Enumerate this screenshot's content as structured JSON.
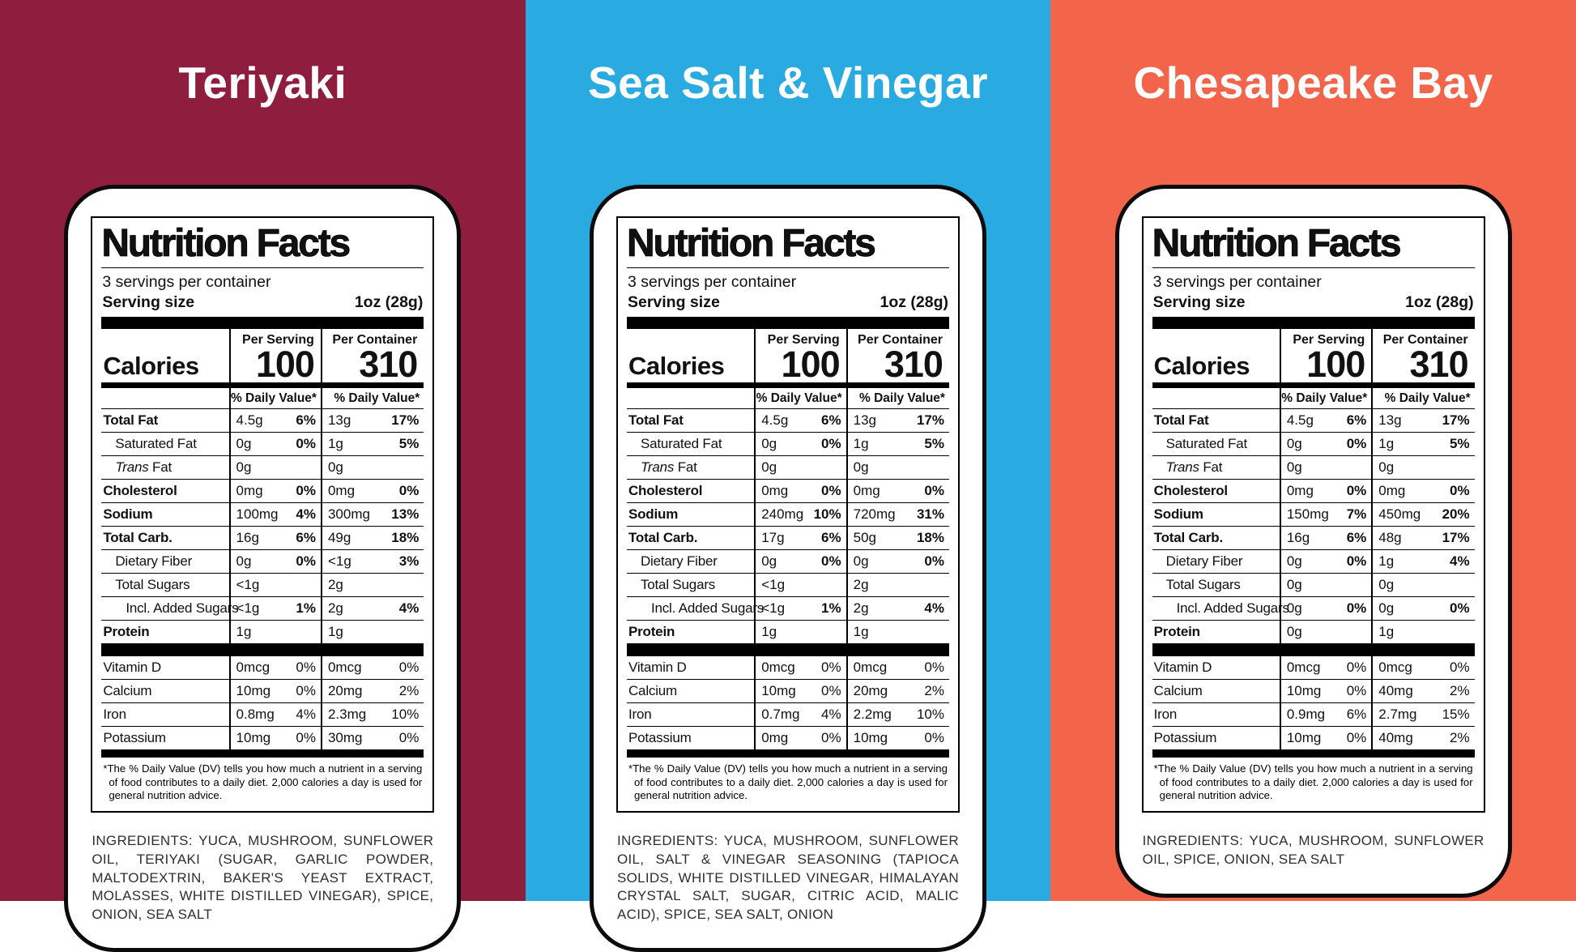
{
  "labels": [
    {
      "title": "Teriyaki",
      "colors": {
        "background": "#8e1d3e"
      },
      "facts": {
        "heading": "Nutrition Facts",
        "servings_per_container": "3 servings per container",
        "serving_size_label": "Serving size",
        "serving_size_value": "1oz (28g)",
        "calories_label": "Calories",
        "per_serving_label": "Per Serving",
        "per_serving_calories": "100",
        "per_container_label": "Per Container",
        "per_container_calories": "310",
        "daily_value_header": "% Daily Value*",
        "rows": [
          {
            "label": "Total Fat",
            "bold": true,
            "indent": 0,
            "ps_amount": "4.5g",
            "ps_dv": "6%",
            "pc_amount": "13g",
            "pc_dv": "17%"
          },
          {
            "label": "Saturated Fat",
            "bold": false,
            "indent": 1,
            "ps_amount": "0g",
            "ps_dv": "0%",
            "pc_amount": "1g",
            "pc_dv": "5%"
          },
          {
            "label_italic": "Trans",
            "label": " Fat",
            "bold": false,
            "indent": 1,
            "ps_amount": "0g",
            "ps_dv": "",
            "pc_amount": "0g",
            "pc_dv": ""
          },
          {
            "label": "Cholesterol",
            "bold": true,
            "indent": 0,
            "ps_amount": "0mg",
            "ps_dv": "0%",
            "pc_amount": "0mg",
            "pc_dv": "0%"
          },
          {
            "label": "Sodium",
            "bold": true,
            "indent": 0,
            "ps_amount": "100mg",
            "ps_dv": "4%",
            "pc_amount": "300mg",
            "pc_dv": "13%"
          },
          {
            "label": "Total Carb.",
            "bold": true,
            "indent": 0,
            "ps_amount": "16g",
            "ps_dv": "6%",
            "pc_amount": "49g",
            "pc_dv": "18%"
          },
          {
            "label": "Dietary Fiber",
            "bold": false,
            "indent": 1,
            "ps_amount": "0g",
            "ps_dv": "0%",
            "pc_amount": "<1g",
            "pc_dv": "3%"
          },
          {
            "label": "Total Sugars",
            "bold": false,
            "indent": 1,
            "ps_amount": "<1g",
            "ps_dv": "",
            "pc_amount": "2g",
            "pc_dv": ""
          },
          {
            "label": "Incl. Added Sugars",
            "bold": false,
            "indent": 2,
            "ps_amount": "<1g",
            "ps_dv": "1%",
            "pc_amount": "2g",
            "pc_dv": "4%"
          },
          {
            "label": "Protein",
            "bold": true,
            "indent": 0,
            "ps_amount": "1g",
            "ps_dv": "",
            "pc_amount": "1g",
            "pc_dv": ""
          }
        ],
        "vitamin_rows": [
          {
            "label": "Vitamin D",
            "ps_amount": "0mcg",
            "ps_dv": "0%",
            "pc_amount": "0mcg",
            "pc_dv": "0%"
          },
          {
            "label": "Calcium",
            "ps_amount": "10mg",
            "ps_dv": "0%",
            "pc_amount": "20mg",
            "pc_dv": "2%"
          },
          {
            "label": "Iron",
            "ps_amount": "0.8mg",
            "ps_dv": "4%",
            "pc_amount": "2.3mg",
            "pc_dv": "10%"
          },
          {
            "label": "Potassium",
            "ps_amount": "10mg",
            "ps_dv": "0%",
            "pc_amount": "30mg",
            "pc_dv": "0%"
          }
        ],
        "footnote": "*The % Daily Value (DV) tells you how much a nutrient in a serving of food contributes to a daily diet. 2,000 calories a day is used for general nutrition advice."
      },
      "ingredients": "INGREDIENTS: YUCA, MUSHROOM, SUNFLOWER OIL, TERIYAKI (SUGAR, GARLIC POWDER, MALTODEXTRIN, BAKER'S YEAST EXTRACT, MOLASSES, WHITE DISTILLED VINEGAR), SPICE, ONION, SEA SALT"
    },
    {
      "title": "Sea Salt & Vinegar",
      "colors": {
        "background": "#29abe2"
      },
      "facts": {
        "heading": "Nutrition Facts",
        "servings_per_container": "3 servings per container",
        "serving_size_label": "Serving size",
        "serving_size_value": "1oz (28g)",
        "calories_label": "Calories",
        "per_serving_label": "Per Serving",
        "per_serving_calories": "100",
        "per_container_label": "Per Container",
        "per_container_calories": "310",
        "daily_value_header": "% Daily Value*",
        "rows": [
          {
            "label": "Total Fat",
            "bold": true,
            "indent": 0,
            "ps_amount": "4.5g",
            "ps_dv": "6%",
            "pc_amount": "13g",
            "pc_dv": "17%"
          },
          {
            "label": "Saturated Fat",
            "bold": false,
            "indent": 1,
            "ps_amount": "0g",
            "ps_dv": "0%",
            "pc_amount": "1g",
            "pc_dv": "5%"
          },
          {
            "label_italic": "Trans",
            "label": " Fat",
            "bold": false,
            "indent": 1,
            "ps_amount": "0g",
            "ps_dv": "",
            "pc_amount": "0g",
            "pc_dv": ""
          },
          {
            "label": "Cholesterol",
            "bold": true,
            "indent": 0,
            "ps_amount": "0mg",
            "ps_dv": "0%",
            "pc_amount": "0mg",
            "pc_dv": "0%"
          },
          {
            "label": "Sodium",
            "bold": true,
            "indent": 0,
            "ps_amount": "240mg",
            "ps_dv": "10%",
            "pc_amount": "720mg",
            "pc_dv": "31%"
          },
          {
            "label": "Total Carb.",
            "bold": true,
            "indent": 0,
            "ps_amount": "17g",
            "ps_dv": "6%",
            "pc_amount": "50g",
            "pc_dv": "18%"
          },
          {
            "label": "Dietary Fiber",
            "bold": false,
            "indent": 1,
            "ps_amount": "0g",
            "ps_dv": "0%",
            "pc_amount": "0g",
            "pc_dv": "0%"
          },
          {
            "label": "Total Sugars",
            "bold": false,
            "indent": 1,
            "ps_amount": "<1g",
            "ps_dv": "",
            "pc_amount": "2g",
            "pc_dv": ""
          },
          {
            "label": "Incl. Added Sugars",
            "bold": false,
            "indent": 2,
            "ps_amount": "<1g",
            "ps_dv": "1%",
            "pc_amount": "2g",
            "pc_dv": "4%"
          },
          {
            "label": "Protein",
            "bold": true,
            "indent": 0,
            "ps_amount": "1g",
            "ps_dv": "",
            "pc_amount": "1g",
            "pc_dv": ""
          }
        ],
        "vitamin_rows": [
          {
            "label": "Vitamin D",
            "ps_amount": "0mcg",
            "ps_dv": "0%",
            "pc_amount": "0mcg",
            "pc_dv": "0%"
          },
          {
            "label": "Calcium",
            "ps_amount": "10mg",
            "ps_dv": "0%",
            "pc_amount": "20mg",
            "pc_dv": "2%"
          },
          {
            "label": "Iron",
            "ps_amount": "0.7mg",
            "ps_dv": "4%",
            "pc_amount": "2.2mg",
            "pc_dv": "10%"
          },
          {
            "label": "Potassium",
            "ps_amount": "0mg",
            "ps_dv": "0%",
            "pc_amount": "10mg",
            "pc_dv": "0%"
          }
        ],
        "footnote": "*The % Daily Value (DV) tells you how much a nutrient in a serving of food contributes to a daily diet. 2,000 calories a day is used for general nutrition advice."
      },
      "ingredients": "INGREDIENTS: YUCA, MUSHROOM, SUNFLOWER OIL, SALT & VINEGAR SEASONING (TAPIOCA SOLIDS, WHITE DISTILLED VINEGAR, HIMALAYAN CRYSTAL SALT, SUGAR, CITRIC ACID, MALIC ACID), SPICE, SEA SALT, ONION"
    },
    {
      "title": "Chesapeake Bay",
      "colors": {
        "background": "#f2654a"
      },
      "facts": {
        "heading": "Nutrition Facts",
        "servings_per_container": "3 servings per container",
        "serving_size_label": "Serving size",
        "serving_size_value": "1oz (28g)",
        "calories_label": "Calories",
        "per_serving_label": "Per Serving",
        "per_serving_calories": "100",
        "per_container_label": "Per Container",
        "per_container_calories": "310",
        "daily_value_header": "% Daily Value*",
        "rows": [
          {
            "label": "Total Fat",
            "bold": true,
            "indent": 0,
            "ps_amount": "4.5g",
            "ps_dv": "6%",
            "pc_amount": "13g",
            "pc_dv": "17%"
          },
          {
            "label": "Saturated Fat",
            "bold": false,
            "indent": 1,
            "ps_amount": "0g",
            "ps_dv": "0%",
            "pc_amount": "1g",
            "pc_dv": "5%"
          },
          {
            "label_italic": "Trans",
            "label": " Fat",
            "bold": false,
            "indent": 1,
            "ps_amount": "0g",
            "ps_dv": "",
            "pc_amount": "0g",
            "pc_dv": ""
          },
          {
            "label": "Cholesterol",
            "bold": true,
            "indent": 0,
            "ps_amount": "0mg",
            "ps_dv": "0%",
            "pc_amount": "0mg",
            "pc_dv": "0%"
          },
          {
            "label": "Sodium",
            "bold": true,
            "indent": 0,
            "ps_amount": "150mg",
            "ps_dv": "7%",
            "pc_amount": "450mg",
            "pc_dv": "20%"
          },
          {
            "label": "Total Carb.",
            "bold": true,
            "indent": 0,
            "ps_amount": "16g",
            "ps_dv": "6%",
            "pc_amount": "48g",
            "pc_dv": "17%"
          },
          {
            "label": "Dietary Fiber",
            "bold": false,
            "indent": 1,
            "ps_amount": "0g",
            "ps_dv": "0%",
            "pc_amount": "1g",
            "pc_dv": "4%"
          },
          {
            "label": "Total Sugars",
            "bold": false,
            "indent": 1,
            "ps_amount": "0g",
            "ps_dv": "",
            "pc_amount": "0g",
            "pc_dv": ""
          },
          {
            "label": "Incl. Added Sugars",
            "bold": false,
            "indent": 2,
            "ps_amount": "0g",
            "ps_dv": "0%",
            "pc_amount": "0g",
            "pc_dv": "0%"
          },
          {
            "label": "Protein",
            "bold": true,
            "indent": 0,
            "ps_amount": "0g",
            "ps_dv": "",
            "pc_amount": "1g",
            "pc_dv": ""
          }
        ],
        "vitamin_rows": [
          {
            "label": "Vitamin D",
            "ps_amount": "0mcg",
            "ps_dv": "0%",
            "pc_amount": "0mcg",
            "pc_dv": "0%"
          },
          {
            "label": "Calcium",
            "ps_amount": "10mg",
            "ps_dv": "0%",
            "pc_amount": "40mg",
            "pc_dv": "2%"
          },
          {
            "label": "Iron",
            "ps_amount": "0.9mg",
            "ps_dv": "6%",
            "pc_amount": "2.7mg",
            "pc_dv": "15%"
          },
          {
            "label": "Potassium",
            "ps_amount": "10mg",
            "ps_dv": "0%",
            "pc_amount": "40mg",
            "pc_dv": "2%"
          }
        ],
        "footnote": "*The % Daily Value (DV) tells you how much a nutrient in a serving of food contributes to a daily diet. 2,000 calories a day is used for general nutrition advice."
      },
      "ingredients": "INGREDIENTS: YUCA, MUSHROOM, SUNFLOWER OIL, SPICE, ONION, SEA SALT"
    }
  ]
}
